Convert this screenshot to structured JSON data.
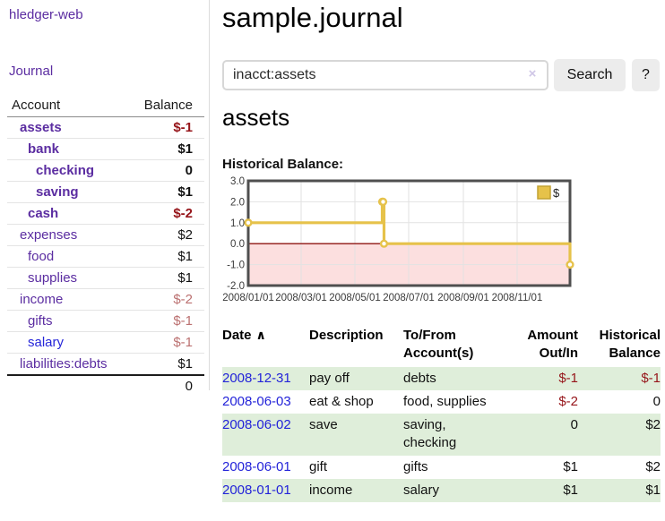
{
  "colors": {
    "link_purple": "#5b2da1",
    "link_blue": "#2323d9",
    "negative": "#96151a",
    "negative_muted": "#bb7070",
    "row_green": "#dfeeda",
    "chart_line": "#e6c24a",
    "chart_negative_fill": "#fcdfdf",
    "chart_zero_line": "#8f1410",
    "chart_border": "#4f4f4f"
  },
  "sidebar": {
    "brand": "hledger-web",
    "journal_label": "Journal",
    "accounts": {
      "header_account": "Account",
      "header_balance": "Balance",
      "rows": [
        {
          "name": "assets",
          "balance": "$-1",
          "level": 1,
          "bold": true,
          "balance_class": "neg"
        },
        {
          "name": "bank",
          "balance": "$1",
          "level": 2,
          "bold": true,
          "balance_class": ""
        },
        {
          "name": "checking",
          "balance": "0",
          "level": 3,
          "bold": true,
          "balance_class": ""
        },
        {
          "name": "saving",
          "balance": "$1",
          "level": 3,
          "bold": true,
          "balance_class": ""
        },
        {
          "name": "cash",
          "balance": "$-2",
          "level": 2,
          "bold": true,
          "balance_class": "neg"
        },
        {
          "name": "expenses",
          "balance": "$2",
          "level": 1,
          "bold": false,
          "balance_class": ""
        },
        {
          "name": "food",
          "balance": "$1",
          "level": 2,
          "bold": false,
          "balance_class": ""
        },
        {
          "name": "supplies",
          "balance": "$1",
          "level": 2,
          "bold": false,
          "balance_class": ""
        },
        {
          "name": "income",
          "balance": "$-2",
          "level": 1,
          "bold": false,
          "balance_class": "neg-muted"
        },
        {
          "name": "gifts",
          "balance": "$-1",
          "level": 2,
          "bold": false,
          "balance_class": "neg-muted"
        },
        {
          "name": "salary",
          "balance": "$-1",
          "level": 2,
          "bold": false,
          "balance_class": "neg-muted",
          "link_class": "blue"
        },
        {
          "name": "liabilities:debts",
          "balance": "$1",
          "level": 1,
          "bold": false,
          "balance_class": ""
        }
      ],
      "total": "0"
    }
  },
  "main": {
    "title": "sample.journal",
    "search": {
      "value": "inacct:assets",
      "clear_icon": "×",
      "button_label": "Search",
      "help_label": "?"
    },
    "account_heading": "assets",
    "chart_title": "Historical Balance:"
  },
  "chart_data": {
    "type": "line",
    "step": true,
    "title": "Historical Balance",
    "series": [
      {
        "name": "$",
        "points": [
          [
            "2008-01-01",
            1
          ],
          [
            "2008-06-01",
            2
          ],
          [
            "2008-06-02",
            2
          ],
          [
            "2008-06-03",
            0
          ],
          [
            "2008-12-31",
            -1
          ]
        ]
      }
    ],
    "xlim": [
      "2008-01-01",
      "2008-12-31"
    ],
    "ylim": [
      -2,
      3
    ],
    "yticks": {
      "values": [
        3,
        2,
        1,
        0,
        -1,
        -2
      ],
      "labels": [
        "3.0",
        "2.0",
        "1.0",
        "0.0",
        "-1.0",
        "-2.0"
      ]
    },
    "xticks": {
      "dates": [
        "2008-01-01",
        "2008-03-01",
        "2008-05-01",
        "2008-07-01",
        "2008-09-01",
        "2008-11-01"
      ],
      "labels": [
        "2008/01/01",
        "2008/03/01",
        "2008/05/01",
        "2008/07/01",
        "2008/09/01",
        "2008/11/01"
      ]
    },
    "legend": {
      "label": "$",
      "position": "top-right"
    },
    "grid": true,
    "negative_region_shaded": true
  },
  "register": {
    "headers": [
      "Date",
      "Description",
      "To/From Account(s)",
      "Amount Out/In",
      "Historical Balance"
    ],
    "sort_icon": "∧",
    "rows": [
      {
        "date": "2008-12-31",
        "description": "pay off",
        "to_from": "debts",
        "amount": "$-1",
        "balance": "$-1",
        "green": true
      },
      {
        "date": "2008-06-03",
        "description": "eat & shop",
        "to_from": "food, supplies",
        "amount": "$-2",
        "balance": "0",
        "green": false
      },
      {
        "date": "2008-06-02",
        "description": "save",
        "to_from": "saving,\nchecking",
        "amount": "0",
        "balance": "$2",
        "green": true
      },
      {
        "date": "2008-06-01",
        "description": "gift",
        "to_from": "gifts",
        "amount": "$1",
        "balance": "$2",
        "green": false
      },
      {
        "date": "2008-01-01",
        "description": "income",
        "to_from": "salary",
        "amount": "$1",
        "balance": "$1",
        "green": true
      }
    ]
  }
}
